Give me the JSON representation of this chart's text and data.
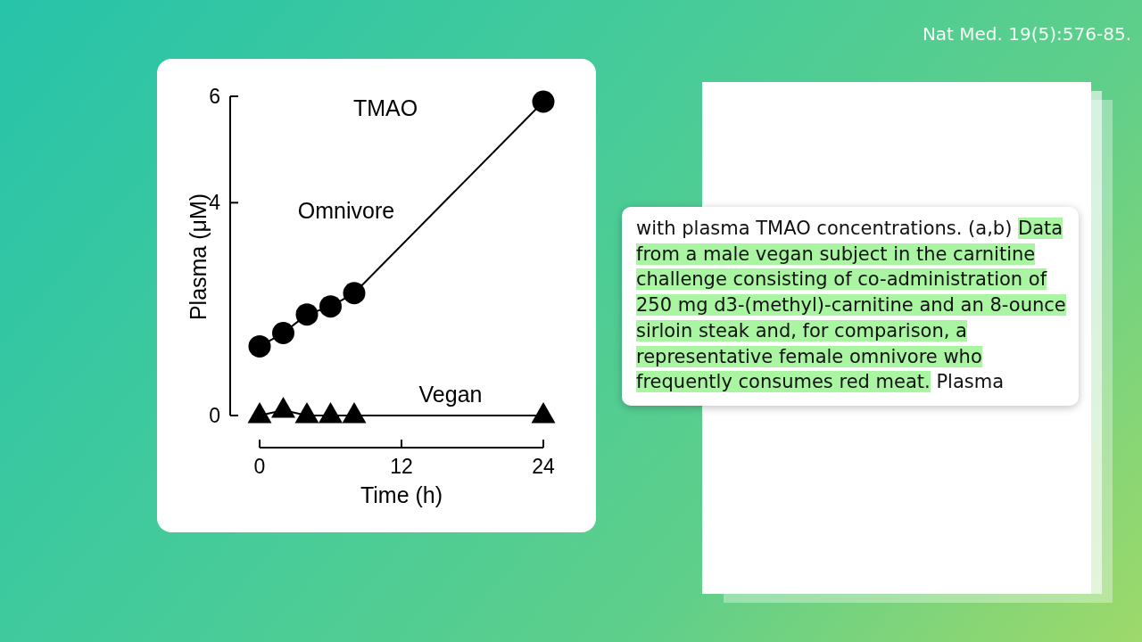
{
  "chart_data": {
    "type": "line",
    "title": "TMAO",
    "xlabel": "Time (h)",
    "ylabel": "Plasma (μM)",
    "x": [
      0,
      2,
      4,
      6,
      8,
      24
    ],
    "xlim": [
      0,
      24
    ],
    "xticks": [
      0,
      12,
      24
    ],
    "ylim": [
      0,
      6
    ],
    "yticks": [
      0,
      4,
      6
    ],
    "line_style": "solid",
    "series": [
      {
        "name": "Omnivore",
        "color": "#000000",
        "marker": "circle",
        "values": [
          1.3,
          1.55,
          1.9,
          2.05,
          2.3,
          5.9
        ]
      },
      {
        "name": "Vegan",
        "color": "#000000",
        "marker": "triangle",
        "values": [
          0,
          0.1,
          0,
          0,
          0,
          0
        ]
      }
    ],
    "annotations": [
      "Nat Med. 19(5):576-85.",
      "with plasma TMAO concentrations. (a,b)",
      "Data from a male vegan subject in the carnitine challenge consisting of co-administration of 250 mg d3-(methyl)-carnitine and an 8-ounce sirloin steak and, for comparison, a representative female omnivore who frequently consumes red meat.",
      "Plasma"
    ]
  }
}
